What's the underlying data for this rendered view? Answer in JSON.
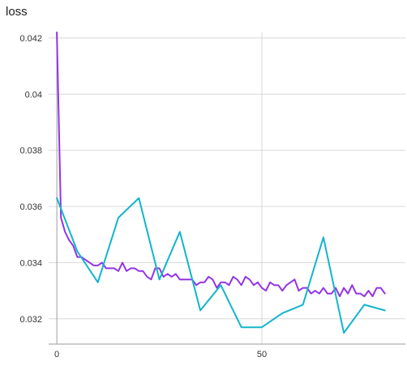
{
  "card": {
    "title": "loss"
  },
  "chart_data": {
    "type": "line",
    "title": "loss",
    "xlabel": "",
    "ylabel": "",
    "xlim": [
      -2,
      85
    ],
    "ylim": [
      0.0311,
      0.0422
    ],
    "x_ticks": [
      0,
      50
    ],
    "y_ticks": [
      0.032,
      0.034,
      0.036,
      0.038,
      0.04,
      0.042
    ],
    "y_tick_labels": [
      "0.032",
      "0.034",
      "0.036",
      "0.038",
      "0.04",
      "0.042"
    ],
    "grid": true,
    "colors": {
      "purple": "#9334e6",
      "cyan": "#12b5cb",
      "grid": "#d8d8d8",
      "axis": "#9e9e9e"
    },
    "series": [
      {
        "color": "#9334e6",
        "x": [
          0,
          1,
          2,
          3,
          4,
          5,
          6,
          7,
          8,
          9,
          10,
          11,
          12,
          13,
          14,
          15,
          16,
          17,
          18,
          19,
          20,
          21,
          22,
          23,
          24,
          25,
          26,
          27,
          28,
          29,
          30,
          31,
          32,
          33,
          34,
          35,
          36,
          37,
          38,
          39,
          40,
          41,
          42,
          43,
          44,
          45,
          46,
          47,
          48,
          49,
          50,
          51,
          52,
          53,
          54,
          55,
          56,
          57,
          58,
          59,
          60,
          61,
          62,
          63,
          64,
          65,
          66,
          67,
          68,
          69,
          70,
          71,
          72,
          73,
          74,
          75,
          76,
          77,
          78,
          79,
          80
        ],
        "y": [
          0.0422,
          0.0356,
          0.0351,
          0.0348,
          0.0346,
          0.0342,
          0.0342,
          0.0341,
          0.034,
          0.0339,
          0.0339,
          0.034,
          0.0338,
          0.0338,
          0.0338,
          0.0337,
          0.034,
          0.0337,
          0.0338,
          0.0338,
          0.0337,
          0.0337,
          0.0335,
          0.0334,
          0.0338,
          0.0338,
          0.0335,
          0.0336,
          0.0335,
          0.0336,
          0.0334,
          0.0334,
          0.0334,
          0.0334,
          0.0332,
          0.0333,
          0.0333,
          0.0335,
          0.0334,
          0.0331,
          0.0333,
          0.0333,
          0.0332,
          0.0335,
          0.0334,
          0.0332,
          0.0335,
          0.0334,
          0.0332,
          0.0333,
          0.0331,
          0.033,
          0.0333,
          0.0332,
          0.0332,
          0.033,
          0.0332,
          0.0333,
          0.0334,
          0.033,
          0.0331,
          0.0331,
          0.0329,
          0.033,
          0.0329,
          0.0331,
          0.0329,
          0.0329,
          0.0331,
          0.0328,
          0.0331,
          0.0329,
          0.0332,
          0.0329,
          0.0329,
          0.0328,
          0.033,
          0.0328,
          0.0331,
          0.0331,
          0.0329
        ]
      },
      {
        "color": "#12b5cb",
        "x": [
          0,
          5,
          10,
          15,
          20,
          25,
          30,
          35,
          40,
          45,
          50,
          55,
          60,
          65,
          70,
          75,
          80
        ],
        "y": [
          0.0363,
          0.0344,
          0.0333,
          0.0356,
          0.0363,
          0.0334,
          0.0351,
          0.0323,
          0.0332,
          0.0317,
          0.0317,
          0.0322,
          0.0325,
          0.0349,
          0.0315,
          0.0325,
          0.0323
        ]
      }
    ]
  }
}
